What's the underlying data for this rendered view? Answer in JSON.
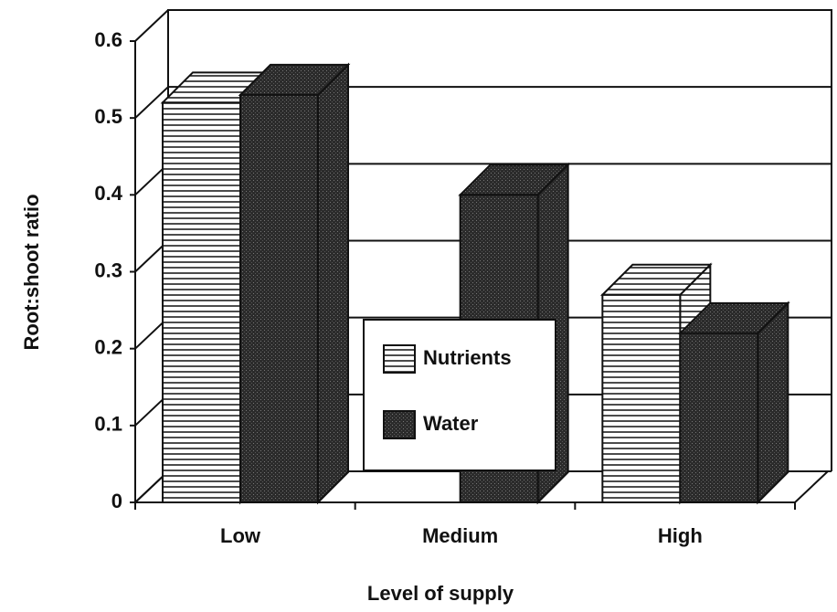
{
  "chart_data": {
    "type": "bar3d",
    "categories": [
      "Low",
      "Medium",
      "High"
    ],
    "series": [
      {
        "name": "Nutrients",
        "color": "#ffffff",
        "pattern": "horizontal-lines",
        "values": [
          0.52,
          null,
          0.27
        ]
      },
      {
        "name": "Water",
        "color": "#2b2b2b",
        "pattern": "stipple",
        "values": [
          0.53,
          0.4,
          0.22
        ]
      }
    ],
    "ylim": [
      0,
      0.6
    ],
    "yticks": [
      0,
      0.1,
      0.2,
      0.3,
      0.4,
      0.5,
      0.6
    ],
    "grid": true,
    "xlabel": "Level of supply",
    "ylabel": "Root:shoot  ratio"
  }
}
